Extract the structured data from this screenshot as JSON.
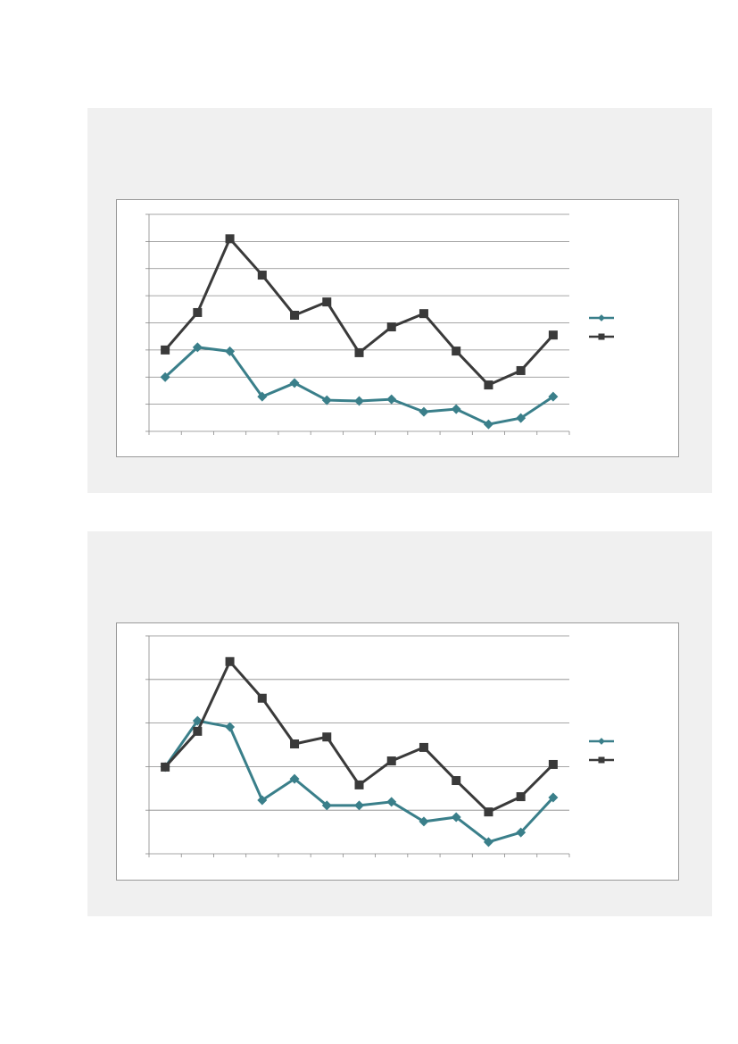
{
  "chart_data": [
    {
      "type": "line",
      "categories": [
        null,
        null,
        null,
        null,
        null,
        null,
        null,
        null,
        null,
        null,
        null,
        null,
        null
      ],
      "ylim": [
        0,
        8
      ],
      "yticks": [
        0,
        1,
        2,
        3,
        4,
        5,
        6,
        7,
        8
      ],
      "grid": true,
      "legend": "right",
      "series": [
        {
          "color": "#3a7f8a",
          "marker": "diamond",
          "values": [
            2.0,
            3.1,
            2.95,
            1.28,
            1.78,
            1.15,
            1.12,
            1.18,
            0.72,
            0.82,
            0.26,
            0.49,
            1.28
          ]
        },
        {
          "color": "#3a3a3a",
          "marker": "square",
          "values": [
            3.0,
            4.38,
            7.1,
            5.76,
            4.28,
            4.77,
            2.9,
            3.85,
            4.34,
            2.96,
            1.71,
            2.24,
            3.55
          ]
        }
      ]
    },
    {
      "type": "line",
      "categories": [
        null,
        null,
        null,
        null,
        null,
        null,
        null,
        null,
        null,
        null,
        null,
        null,
        null
      ],
      "ylim": [
        0,
        5
      ],
      "yticks": [
        0,
        1,
        2,
        3,
        4,
        5
      ],
      "grid": true,
      "legend": "right",
      "series": [
        {
          "color": "#3a7f8a",
          "marker": "diamond",
          "values": [
            1.99,
            3.05,
            2.91,
            1.23,
            1.72,
            1.11,
            1.11,
            1.19,
            0.74,
            0.84,
            0.27,
            0.49,
            1.29
          ]
        },
        {
          "color": "#3a3a3a",
          "marker": "square",
          "values": [
            1.99,
            2.81,
            4.41,
            3.57,
            2.52,
            2.68,
            1.58,
            2.13,
            2.44,
            1.68,
            0.96,
            1.31,
            2.05
          ]
        }
      ]
    }
  ]
}
